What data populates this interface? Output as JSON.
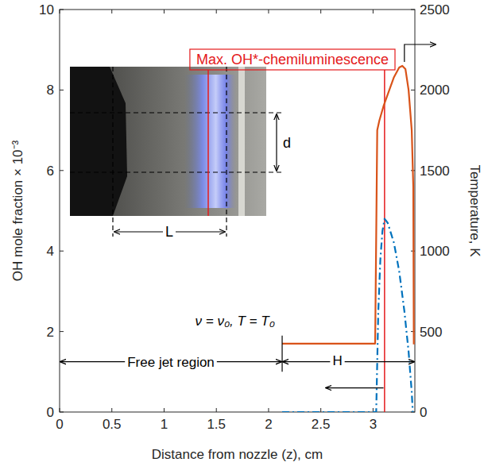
{
  "chart_data": {
    "type": "line",
    "x_label": "Distance from nozzle (z), cm",
    "y_label": "OH mole fraction × 10⁻³",
    "y2_label": "Temperature, K",
    "xlim": [
      0,
      3.4
    ],
    "xticks": [
      0,
      0.5,
      1,
      1.5,
      2,
      2.5,
      3
    ],
    "ylim": [
      0,
      10
    ],
    "yticks": [
      0,
      2,
      4,
      6,
      8,
      10
    ],
    "y2lim": [
      0,
      2500
    ],
    "y2ticks": [
      0,
      500,
      1000,
      1500,
      2000,
      2500
    ],
    "series": [
      {
        "color": "#d95319",
        "line_style": "solid",
        "axis": "y2",
        "x": [
          2.13,
          3.02,
          3.04,
          3.06,
          3.1,
          3.15,
          3.2,
          3.25,
          3.28,
          3.31,
          3.34,
          3.37,
          3.385,
          3.39
        ],
        "values": [
          425,
          425,
          1750,
          1810,
          1900,
          1990,
          2080,
          2140,
          2150,
          2130,
          2000,
          1750,
          1400,
          420
        ]
      },
      {
        "color": "#0072bd",
        "line_style": "dashdot",
        "axis": "y",
        "x": [
          2.13,
          3.03,
          3.05,
          3.07,
          3.09,
          3.11,
          3.14,
          3.2,
          3.25,
          3.3,
          3.34,
          3.37,
          3.38
        ],
        "values": [
          0,
          0,
          2.5,
          3.8,
          4.5,
          4.8,
          4.7,
          4.2,
          3.5,
          2.5,
          1.5,
          0.5,
          0
        ]
      }
    ],
    "annotations": {
      "max_oh": {
        "text": "Max. OH*-chemiluminescence",
        "x": 3.11
      },
      "free_jet": {
        "text": "Free jet region",
        "from": 0,
        "to": 2.13
      },
      "h": {
        "text": "H",
        "from": 2.13,
        "to": 3.4
      },
      "condition": "ν = ν₀, T = T₀",
      "d": "d",
      "l": "L"
    }
  }
}
